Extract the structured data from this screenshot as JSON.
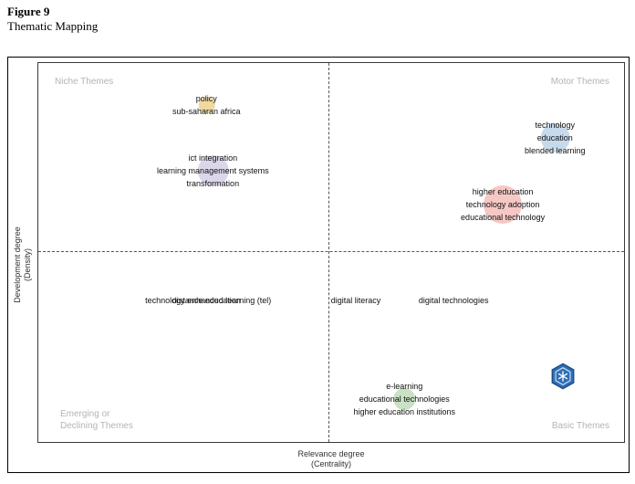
{
  "figure": {
    "label": "Figure 9",
    "caption": "Thematic Mapping"
  },
  "axes": {
    "x_label_line1": "Relevance degree",
    "x_label_line2": "(Centrality)",
    "y_label_line1": "Development degree",
    "y_label_line2": "(Density)"
  },
  "quadrants": {
    "top_left": "Niche Themes",
    "top_right": "Motor Themes",
    "bottom_left_line1": "Emerging or",
    "bottom_left_line2": "Declining Themes",
    "bottom_right": "Basic Themes"
  },
  "chart_data": {
    "type": "scatter",
    "title": "Thematic Mapping",
    "xlabel": "Relevance degree (Centrality)",
    "ylabel": "Development degree (Density)",
    "tick_labels_shown": false,
    "grid": false,
    "quadrant_divider": {
      "x_pct": 49.5,
      "y_pct": 49.6,
      "style": "dashed"
    },
    "clusters": [
      {
        "id": "policy",
        "labels": [
          "policy",
          "sub-saharan africa"
        ],
        "x_pct": 28.7,
        "y_pct": 11.1,
        "bubble_radius": 9,
        "bubble_color": "#e9c36c",
        "bubble_opacity": 0.65
      },
      {
        "id": "ict-integration",
        "labels": [
          "ict integration",
          "learning management systems",
          "transformation"
        ],
        "x_pct": 29.8,
        "y_pct": 28.4,
        "bubble_radius": 17,
        "bubble_color": "#c5bbdd",
        "bubble_opacity": 0.6
      },
      {
        "id": "technology",
        "labels": [
          "technology",
          "education",
          "blended learning"
        ],
        "x_pct": 88.2,
        "y_pct": 19.8,
        "bubble_radius": 16,
        "bubble_color": "#a9c6e2",
        "bubble_opacity": 0.65
      },
      {
        "id": "higher-education",
        "labels": [
          "higher education",
          "technology adoption",
          "educational technology"
        ],
        "x_pct": 79.3,
        "y_pct": 37.3,
        "bubble_radius": 21,
        "bubble_color": "#f0a39e",
        "bubble_opacity": 0.6
      },
      {
        "id": "technology-enhanced-learning",
        "labels": [
          "technology enhanced learning (tel)"
        ],
        "x_pct": 29.0,
        "y_pct": 62.7,
        "bubble_radius": 0,
        "bubble_color": "#cccccc",
        "bubble_opacity": 0
      },
      {
        "id": "distance-education",
        "labels": [
          "distance education"
        ],
        "x_pct": 28.7,
        "y_pct": 62.7,
        "bubble_radius": 0,
        "bubble_color": "#cccccc",
        "bubble_opacity": 0
      },
      {
        "id": "digital-literacy",
        "labels": [
          "digital literacy"
        ],
        "x_pct": 54.2,
        "y_pct": 62.7,
        "bubble_radius": 0,
        "bubble_color": "#cccccc",
        "bubble_opacity": 0
      },
      {
        "id": "digital-technologies",
        "labels": [
          "digital technologies"
        ],
        "x_pct": 70.9,
        "y_pct": 62.7,
        "bubble_radius": 0,
        "bubble_color": "#cccccc",
        "bubble_opacity": 0
      },
      {
        "id": "e-learning",
        "labels": [
          "e-learning",
          "educational technologies",
          "higher education institutions"
        ],
        "x_pct": 62.5,
        "y_pct": 88.7,
        "bubble_radius": 12,
        "bubble_color": "#a6cd9d",
        "bubble_opacity": 0.6
      }
    ]
  },
  "watermark": {
    "name": "hexagon-logo",
    "color": "#2e6fb6"
  }
}
